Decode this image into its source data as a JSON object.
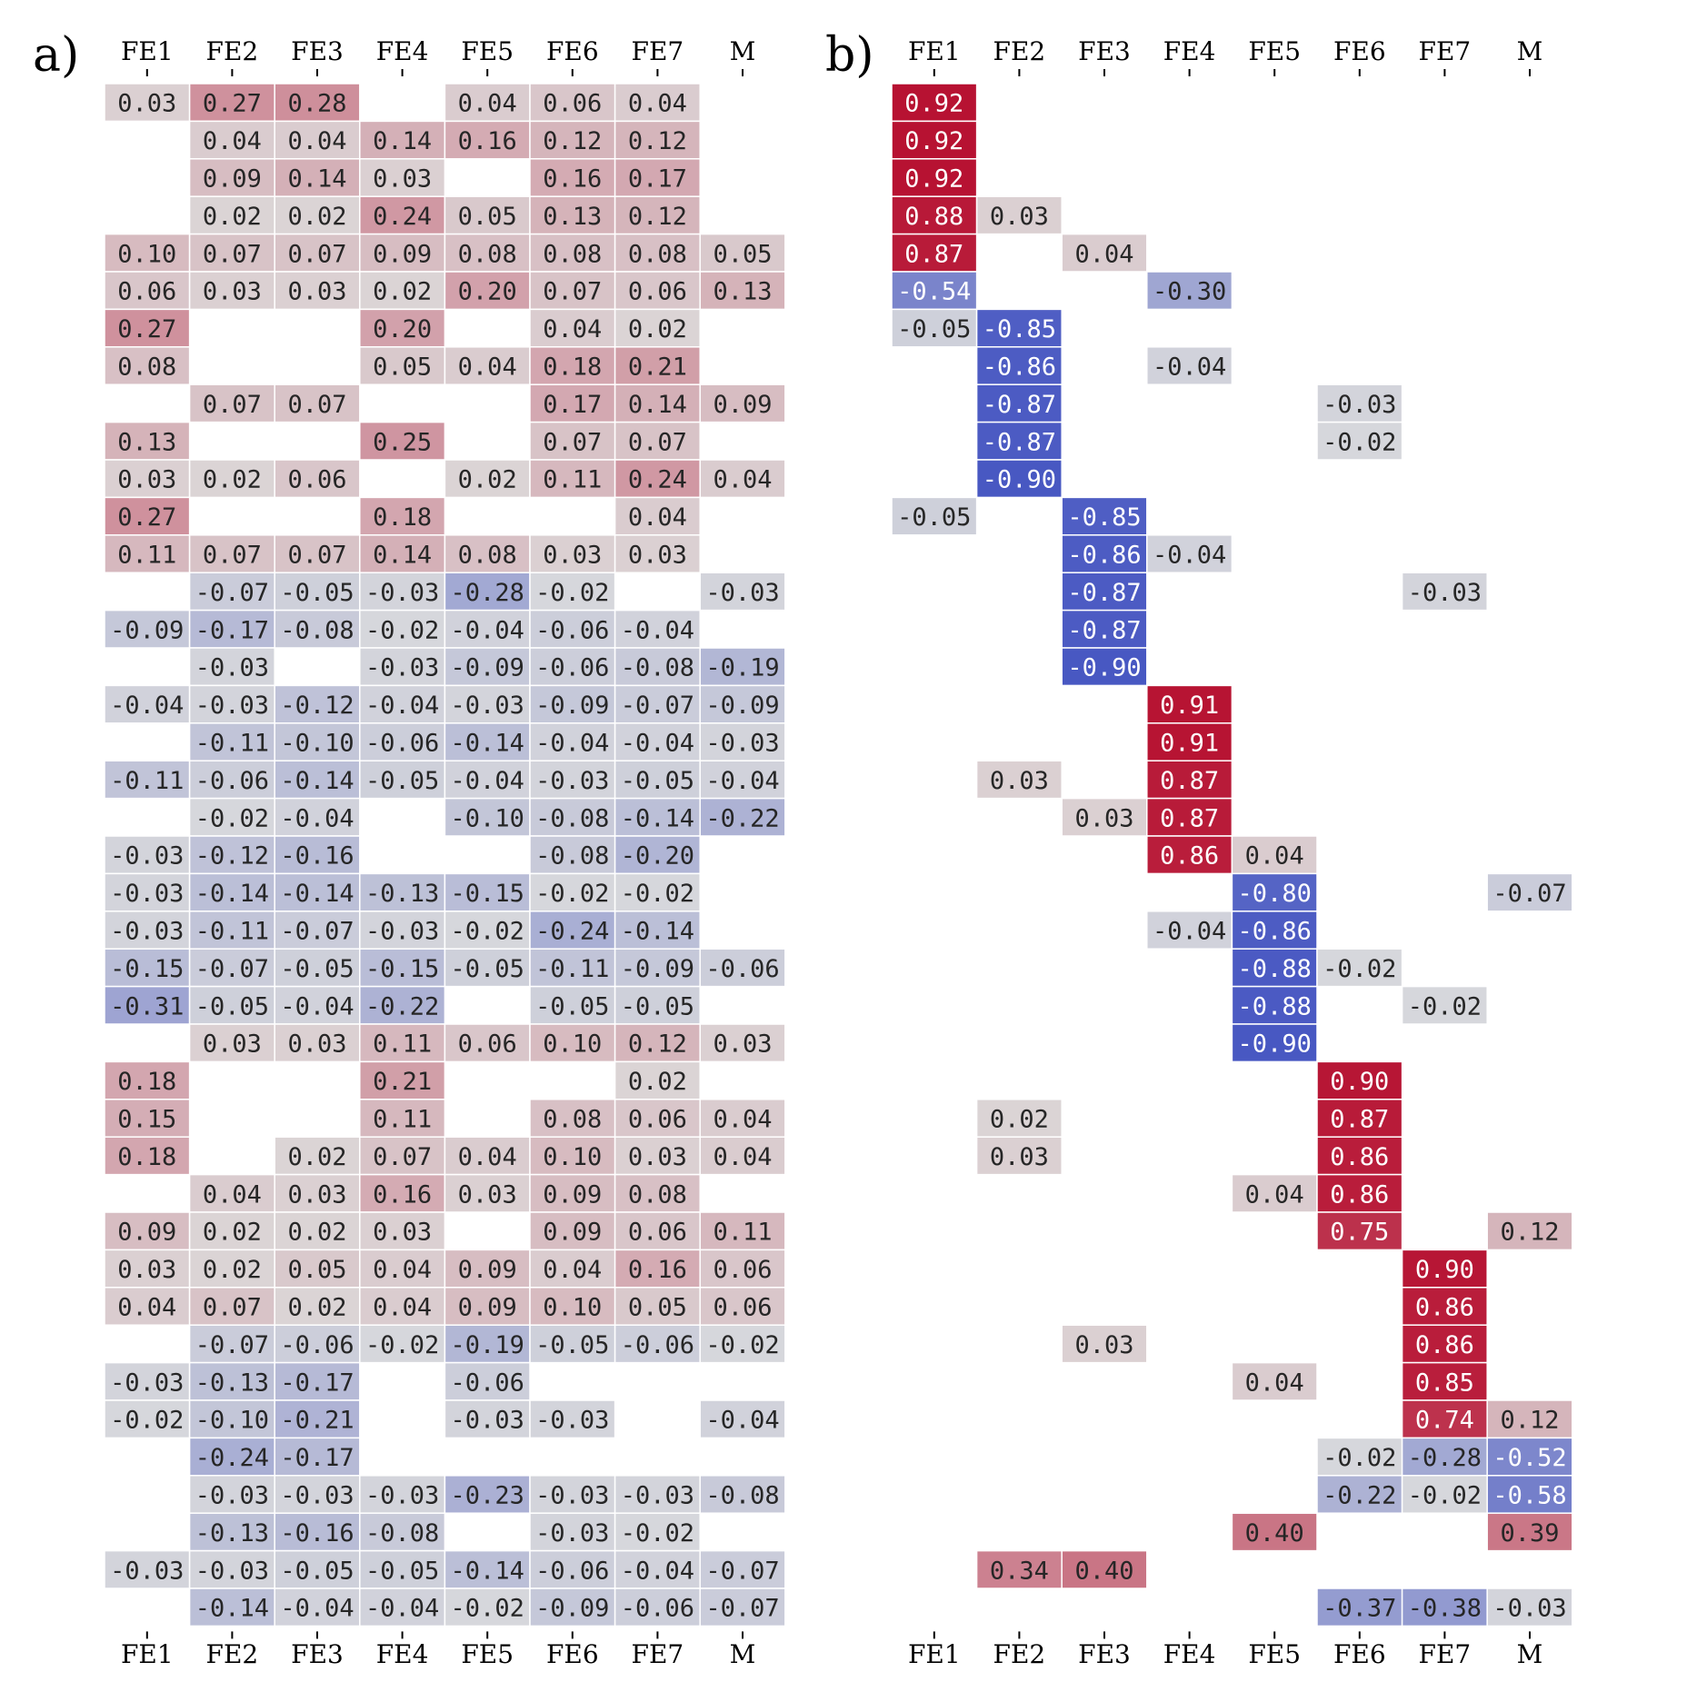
{
  "chart_data": [
    {
      "type": "heatmap",
      "panel_label": "a)",
      "columns": [
        "FE1",
        "FE2",
        "FE3",
        "FE4",
        "FE5",
        "FE6",
        "FE7",
        "M"
      ],
      "color_scale": {
        "min": -1,
        "max": 1,
        "negative": "#3b4cc0",
        "neutral": "#dddddd",
        "positive": "#b40426"
      },
      "blank_threshold": 0.02,
      "values": [
        [
          "0.03",
          "0.27",
          "0.28",
          "",
          "0.04",
          "0.06",
          "0.04",
          ""
        ],
        [
          "",
          "0.04",
          "0.04",
          "0.14",
          "0.16",
          "0.12",
          "0.12",
          ""
        ],
        [
          "",
          "0.09",
          "0.14",
          "0.03",
          "",
          "0.16",
          "0.17",
          ""
        ],
        [
          "",
          "0.02",
          "0.02",
          "0.24",
          "0.05",
          "0.13",
          "0.12",
          ""
        ],
        [
          "0.10",
          "0.07",
          "0.07",
          "0.09",
          "0.08",
          "0.08",
          "0.08",
          "0.05"
        ],
        [
          "0.06",
          "0.03",
          "0.03",
          "0.02",
          "0.20",
          "0.07",
          "0.06",
          "0.13"
        ],
        [
          "0.27",
          "",
          "",
          "0.20",
          "",
          "0.04",
          "0.02",
          ""
        ],
        [
          "0.08",
          "",
          "",
          "0.05",
          "0.04",
          "0.18",
          "0.21",
          ""
        ],
        [
          "",
          "0.07",
          "0.07",
          "",
          "",
          "0.17",
          "0.14",
          "0.09"
        ],
        [
          "0.13",
          "",
          "",
          "0.25",
          "",
          "0.07",
          "0.07",
          ""
        ],
        [
          "0.03",
          "0.02",
          "0.06",
          "",
          "0.02",
          "0.11",
          "0.24",
          "0.04"
        ],
        [
          "0.27",
          "",
          "",
          "0.18",
          "",
          "",
          "0.04",
          ""
        ],
        [
          "0.11",
          "0.07",
          "0.07",
          "0.14",
          "0.08",
          "0.03",
          "0.03",
          ""
        ],
        [
          "",
          "-0.07",
          "-0.05",
          "-0.03",
          "-0.28",
          "-0.02",
          "",
          "-0.03"
        ],
        [
          "-0.09",
          "-0.17",
          "-0.08",
          "-0.02",
          "-0.04",
          "-0.06",
          "-0.04",
          ""
        ],
        [
          "",
          "-0.03",
          "",
          "-0.03",
          "-0.09",
          "-0.06",
          "-0.08",
          "-0.19"
        ],
        [
          "-0.04",
          "-0.03",
          "-0.12",
          "-0.04",
          "-0.03",
          "-0.09",
          "-0.07",
          "-0.09"
        ],
        [
          "",
          "-0.11",
          "-0.10",
          "-0.06",
          "-0.14",
          "-0.04",
          "-0.04",
          "-0.03"
        ],
        [
          "-0.11",
          "-0.06",
          "-0.14",
          "-0.05",
          "-0.04",
          "-0.03",
          "-0.05",
          "-0.04"
        ],
        [
          "",
          "-0.02",
          "-0.04",
          "",
          "-0.10",
          "-0.08",
          "-0.14",
          "-0.22"
        ],
        [
          "-0.03",
          "-0.12",
          "-0.16",
          "",
          "",
          "-0.08",
          "-0.20",
          ""
        ],
        [
          "-0.03",
          "-0.14",
          "-0.14",
          "-0.13",
          "-0.15",
          "-0.02",
          "-0.02",
          ""
        ],
        [
          "-0.03",
          "-0.11",
          "-0.07",
          "-0.03",
          "-0.02",
          "-0.24",
          "-0.14",
          ""
        ],
        [
          "-0.15",
          "-0.07",
          "-0.05",
          "-0.15",
          "-0.05",
          "-0.11",
          "-0.09",
          "-0.06"
        ],
        [
          "-0.31",
          "-0.05",
          "-0.04",
          "-0.22",
          "",
          "-0.05",
          "-0.05",
          ""
        ],
        [
          "",
          "0.03",
          "0.03",
          "0.11",
          "0.06",
          "0.10",
          "0.12",
          "0.03"
        ],
        [
          "0.18",
          "",
          "",
          "0.21",
          "",
          "",
          "0.02",
          ""
        ],
        [
          "0.15",
          "",
          "",
          "0.11",
          "",
          "0.08",
          "0.06",
          "0.04"
        ],
        [
          "0.18",
          "",
          "0.02",
          "0.07",
          "0.04",
          "0.10",
          "0.03",
          "0.04"
        ],
        [
          "",
          "0.04",
          "0.03",
          "0.16",
          "0.03",
          "0.09",
          "0.08",
          ""
        ],
        [
          "0.09",
          "0.02",
          "0.02",
          "0.03",
          "",
          "0.09",
          "0.06",
          "0.11"
        ],
        [
          "0.03",
          "0.02",
          "0.05",
          "0.04",
          "0.09",
          "0.04",
          "0.16",
          "0.06"
        ],
        [
          "0.04",
          "0.07",
          "0.02",
          "0.04",
          "0.09",
          "0.10",
          "0.05",
          "0.06"
        ],
        [
          "",
          "-0.07",
          "-0.06",
          "-0.02",
          "-0.19",
          "-0.05",
          "-0.06",
          "-0.02"
        ],
        [
          "-0.03",
          "-0.13",
          "-0.17",
          "",
          "-0.06",
          "",
          "",
          ""
        ],
        [
          "-0.02",
          "-0.10",
          "-0.21",
          "",
          "-0.03",
          "-0.03",
          "",
          "-0.04"
        ],
        [
          "",
          "-0.24",
          "-0.17",
          "",
          "",
          "",
          "",
          ""
        ],
        [
          "",
          "-0.03",
          "-0.03",
          "-0.03",
          "-0.23",
          "-0.03",
          "-0.03",
          "-0.08"
        ],
        [
          "",
          "-0.13",
          "-0.16",
          "-0.08",
          "",
          "-0.03",
          "-0.02",
          ""
        ],
        [
          "-0.03",
          "-0.03",
          "-0.05",
          "-0.05",
          "-0.14",
          "-0.06",
          "-0.04",
          "-0.07"
        ],
        [
          "",
          "-0.14",
          "-0.04",
          "-0.04",
          "-0.02",
          "-0.09",
          "-0.06",
          "-0.07"
        ]
      ]
    },
    {
      "type": "heatmap",
      "panel_label": "b)",
      "columns": [
        "FE1",
        "FE2",
        "FE3",
        "FE4",
        "FE5",
        "FE6",
        "FE7",
        "M"
      ],
      "color_scale": {
        "min": -1,
        "max": 1,
        "negative": "#3b4cc0",
        "neutral": "#dddddd",
        "positive": "#b40426"
      },
      "blank_threshold": 0.02,
      "values": [
        [
          "0.92",
          "",
          "",
          "",
          "",
          "",
          "",
          ""
        ],
        [
          "0.92",
          "",
          "",
          "",
          "",
          "",
          "",
          ""
        ],
        [
          "0.92",
          "",
          "",
          "",
          "",
          "",
          "",
          ""
        ],
        [
          "0.88",
          "0.03",
          "",
          "",
          "",
          "",
          "",
          ""
        ],
        [
          "0.87",
          "",
          "0.04",
          "",
          "",
          "",
          "",
          ""
        ],
        [
          "-0.54",
          "",
          "",
          "-0.30",
          "",
          "",
          "",
          ""
        ],
        [
          "-0.05",
          "-0.85",
          "",
          "",
          "",
          "",
          "",
          ""
        ],
        [
          "",
          "-0.86",
          "",
          "-0.04",
          "",
          "",
          "",
          ""
        ],
        [
          "",
          "-0.87",
          "",
          "",
          "",
          "-0.03",
          "",
          ""
        ],
        [
          "",
          "-0.87",
          "",
          "",
          "",
          "-0.02",
          "",
          ""
        ],
        [
          "",
          "-0.90",
          "",
          "",
          "",
          "",
          "",
          ""
        ],
        [
          "-0.05",
          "",
          "-0.85",
          "",
          "",
          "",
          "",
          ""
        ],
        [
          "",
          "",
          "-0.86",
          "-0.04",
          "",
          "",
          "",
          ""
        ],
        [
          "",
          "",
          "-0.87",
          "",
          "",
          "",
          "-0.03",
          ""
        ],
        [
          "",
          "",
          "-0.87",
          "",
          "",
          "",
          "",
          ""
        ],
        [
          "",
          "",
          "-0.90",
          "",
          "",
          "",
          "",
          ""
        ],
        [
          "",
          "",
          "",
          "0.91",
          "",
          "",
          "",
          ""
        ],
        [
          "",
          "",
          "",
          "0.91",
          "",
          "",
          "",
          ""
        ],
        [
          "",
          "0.03",
          "",
          "0.87",
          "",
          "",
          "",
          ""
        ],
        [
          "",
          "",
          "0.03",
          "0.87",
          "",
          "",
          "",
          ""
        ],
        [
          "",
          "",
          "",
          "0.86",
          "0.04",
          "",
          "",
          ""
        ],
        [
          "",
          "",
          "",
          "",
          "-0.80",
          "",
          "",
          "-0.07"
        ],
        [
          "",
          "",
          "",
          "-0.04",
          "-0.86",
          "",
          "",
          ""
        ],
        [
          "",
          "",
          "",
          "",
          "-0.88",
          "-0.02",
          "",
          ""
        ],
        [
          "",
          "",
          "",
          "",
          "-0.88",
          "",
          "-0.02",
          ""
        ],
        [
          "",
          "",
          "",
          "",
          "-0.90",
          "",
          "",
          ""
        ],
        [
          "",
          "",
          "",
          "",
          "",
          "0.90",
          "",
          ""
        ],
        [
          "",
          "0.02",
          "",
          "",
          "",
          "0.87",
          "",
          ""
        ],
        [
          "",
          "0.03",
          "",
          "",
          "",
          "0.86",
          "",
          ""
        ],
        [
          "",
          "",
          "",
          "",
          "0.04",
          "0.86",
          "",
          ""
        ],
        [
          "",
          "",
          "",
          "",
          "",
          "0.75",
          "",
          "0.12"
        ],
        [
          "",
          "",
          "",
          "",
          "",
          "",
          "0.90",
          ""
        ],
        [
          "",
          "",
          "",
          "",
          "",
          "",
          "0.86",
          ""
        ],
        [
          "",
          "",
          "0.03",
          "",
          "",
          "",
          "0.86",
          ""
        ],
        [
          "",
          "",
          "",
          "",
          "0.04",
          "",
          "0.85",
          ""
        ],
        [
          "",
          "",
          "",
          "",
          "",
          "",
          "0.74",
          "0.12"
        ],
        [
          "",
          "",
          "",
          "",
          "",
          "-0.02",
          "-0.28",
          "-0.52"
        ],
        [
          "",
          "",
          "",
          "",
          "",
          "-0.22",
          "-0.02",
          "-0.58"
        ],
        [
          "",
          "",
          "",
          "",
          "0.40",
          "",
          "",
          "0.39"
        ],
        [
          "",
          "0.34",
          "0.40",
          "",
          "",
          "",
          "",
          ""
        ],
        [
          "",
          "",
          "",
          "",
          "",
          "-0.37",
          "-0.38",
          "-0.03"
        ]
      ]
    }
  ]
}
